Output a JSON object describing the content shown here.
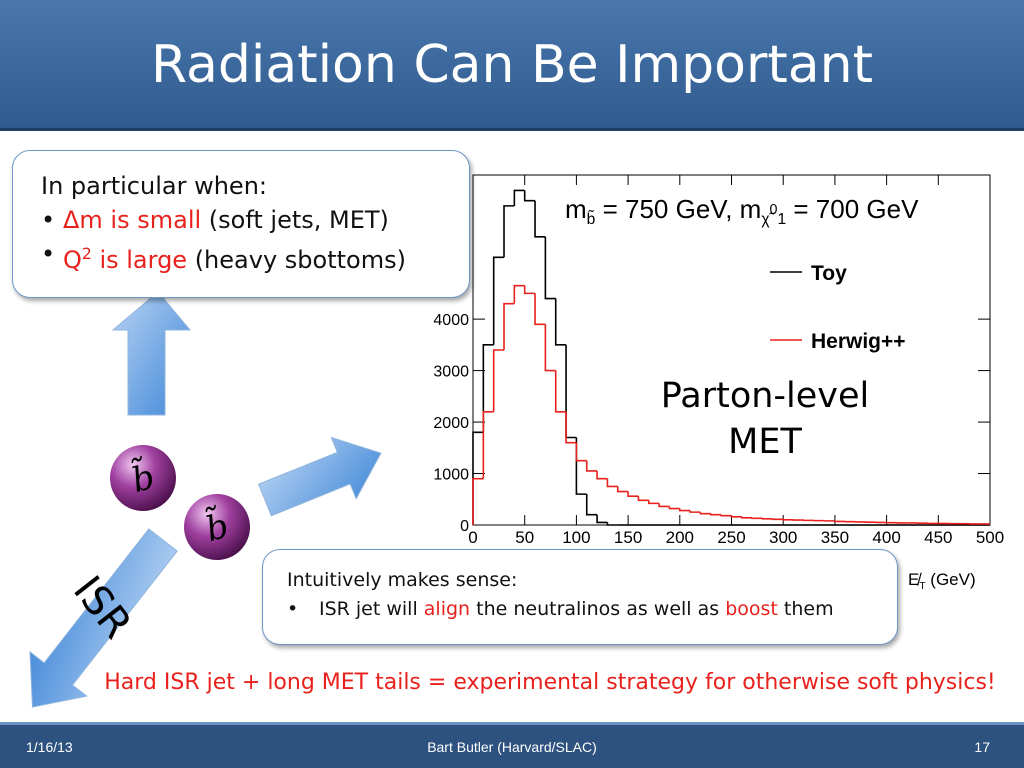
{
  "slide": {
    "title": "Radiation Can Be Important",
    "box1": {
      "heading": "In particular when:",
      "bullets": [
        [
          {
            "text": "Δm is small",
            "color": "#e8211d"
          },
          {
            "text": " (soft jets, MET)"
          }
        ],
        [
          {
            "text": "Q",
            "color": "#e8211d"
          },
          {
            "text": "2",
            "color": "#e8211d",
            "script": "sup"
          },
          {
            "text": " is large",
            "color": "#e8211d"
          },
          {
            "text": " (heavy sbottoms)"
          }
        ]
      ]
    },
    "box2": {
      "heading": "Intuitively makes sense:",
      "bullets": [
        [
          {
            "text": "ISR jet will "
          },
          {
            "text": "align",
            "color": "#e8211d"
          },
          {
            "text": " the neutralinos as well as "
          },
          {
            "text": "boost",
            "color": "#e8211d"
          },
          {
            "text": " them"
          }
        ]
      ]
    },
    "particles": [
      "b̃",
      "b̃"
    ],
    "isr_label": "ISR",
    "conclusion": "Hard ISR jet + long MET tails = experimental strategy for otherwise soft physics!",
    "footer": {
      "date": "1/16/13",
      "author": "Bart Butler (Harvard/SLAC)",
      "page": "17"
    }
  },
  "chart_data": {
    "type": "histogram",
    "title_parts": [
      {
        "text": "m"
      },
      {
        "text": "b̃",
        "script": "sub"
      },
      {
        "text": " = 750 GeV, m"
      },
      {
        "text": "χ̃",
        "script": "sub"
      },
      {
        "text": "0",
        "script": "sup"
      },
      {
        "text": "1",
        "script": "sub"
      },
      {
        "text": " = 700 GeV"
      }
    ],
    "xlabel_parts": [
      {
        "text": "E̸"
      },
      {
        "text": "T",
        "script": "sub"
      },
      {
        "text": " (GeV)"
      }
    ],
    "annotation": [
      "Parton-level",
      "MET"
    ],
    "bins": [
      0,
      10,
      20,
      30,
      40,
      50,
      60,
      70,
      80,
      90,
      100,
      110,
      120,
      130,
      140,
      150,
      160,
      170,
      180,
      190,
      200,
      210,
      220,
      230,
      240,
      250,
      260,
      270,
      280,
      290,
      300,
      310,
      320,
      330,
      340,
      350,
      360,
      370,
      380,
      390,
      400,
      410,
      420,
      430,
      440,
      450,
      460,
      470,
      480,
      490,
      500
    ],
    "series": [
      {
        "name": "Toy",
        "color": "#000000",
        "values": [
          1800,
          3500,
          5200,
          6200,
          6500,
          6300,
          5600,
          4400,
          3500,
          1700,
          600,
          200,
          50,
          0,
          0,
          0,
          0,
          0,
          0,
          0,
          0,
          0,
          0,
          0,
          0,
          0,
          0,
          0,
          0,
          0,
          0,
          0,
          0,
          0,
          0,
          0,
          0,
          0,
          0,
          0,
          0,
          0,
          0,
          0,
          0,
          0,
          0,
          0,
          0,
          0
        ]
      },
      {
        "name": "Herwig++",
        "color": "#e8211d",
        "values": [
          900,
          2200,
          3400,
          4300,
          4650,
          4500,
          3900,
          3000,
          2200,
          1600,
          1250,
          1050,
          900,
          750,
          650,
          560,
          480,
          420,
          360,
          320,
          280,
          250,
          220,
          200,
          180,
          160,
          140,
          130,
          120,
          110,
          100,
          95,
          90,
          85,
          80,
          70,
          65,
          60,
          55,
          50,
          45,
          40,
          40,
          35,
          30,
          30,
          25,
          25,
          20,
          20
        ]
      }
    ],
    "xlim": [
      0,
      500
    ],
    "xticks": [
      0,
      50,
      100,
      150,
      200,
      250,
      300,
      350,
      400,
      450,
      500
    ],
    "ylim": [
      0,
      6800
    ],
    "yticks": [
      0,
      1000,
      2000,
      3000,
      4000
    ]
  }
}
